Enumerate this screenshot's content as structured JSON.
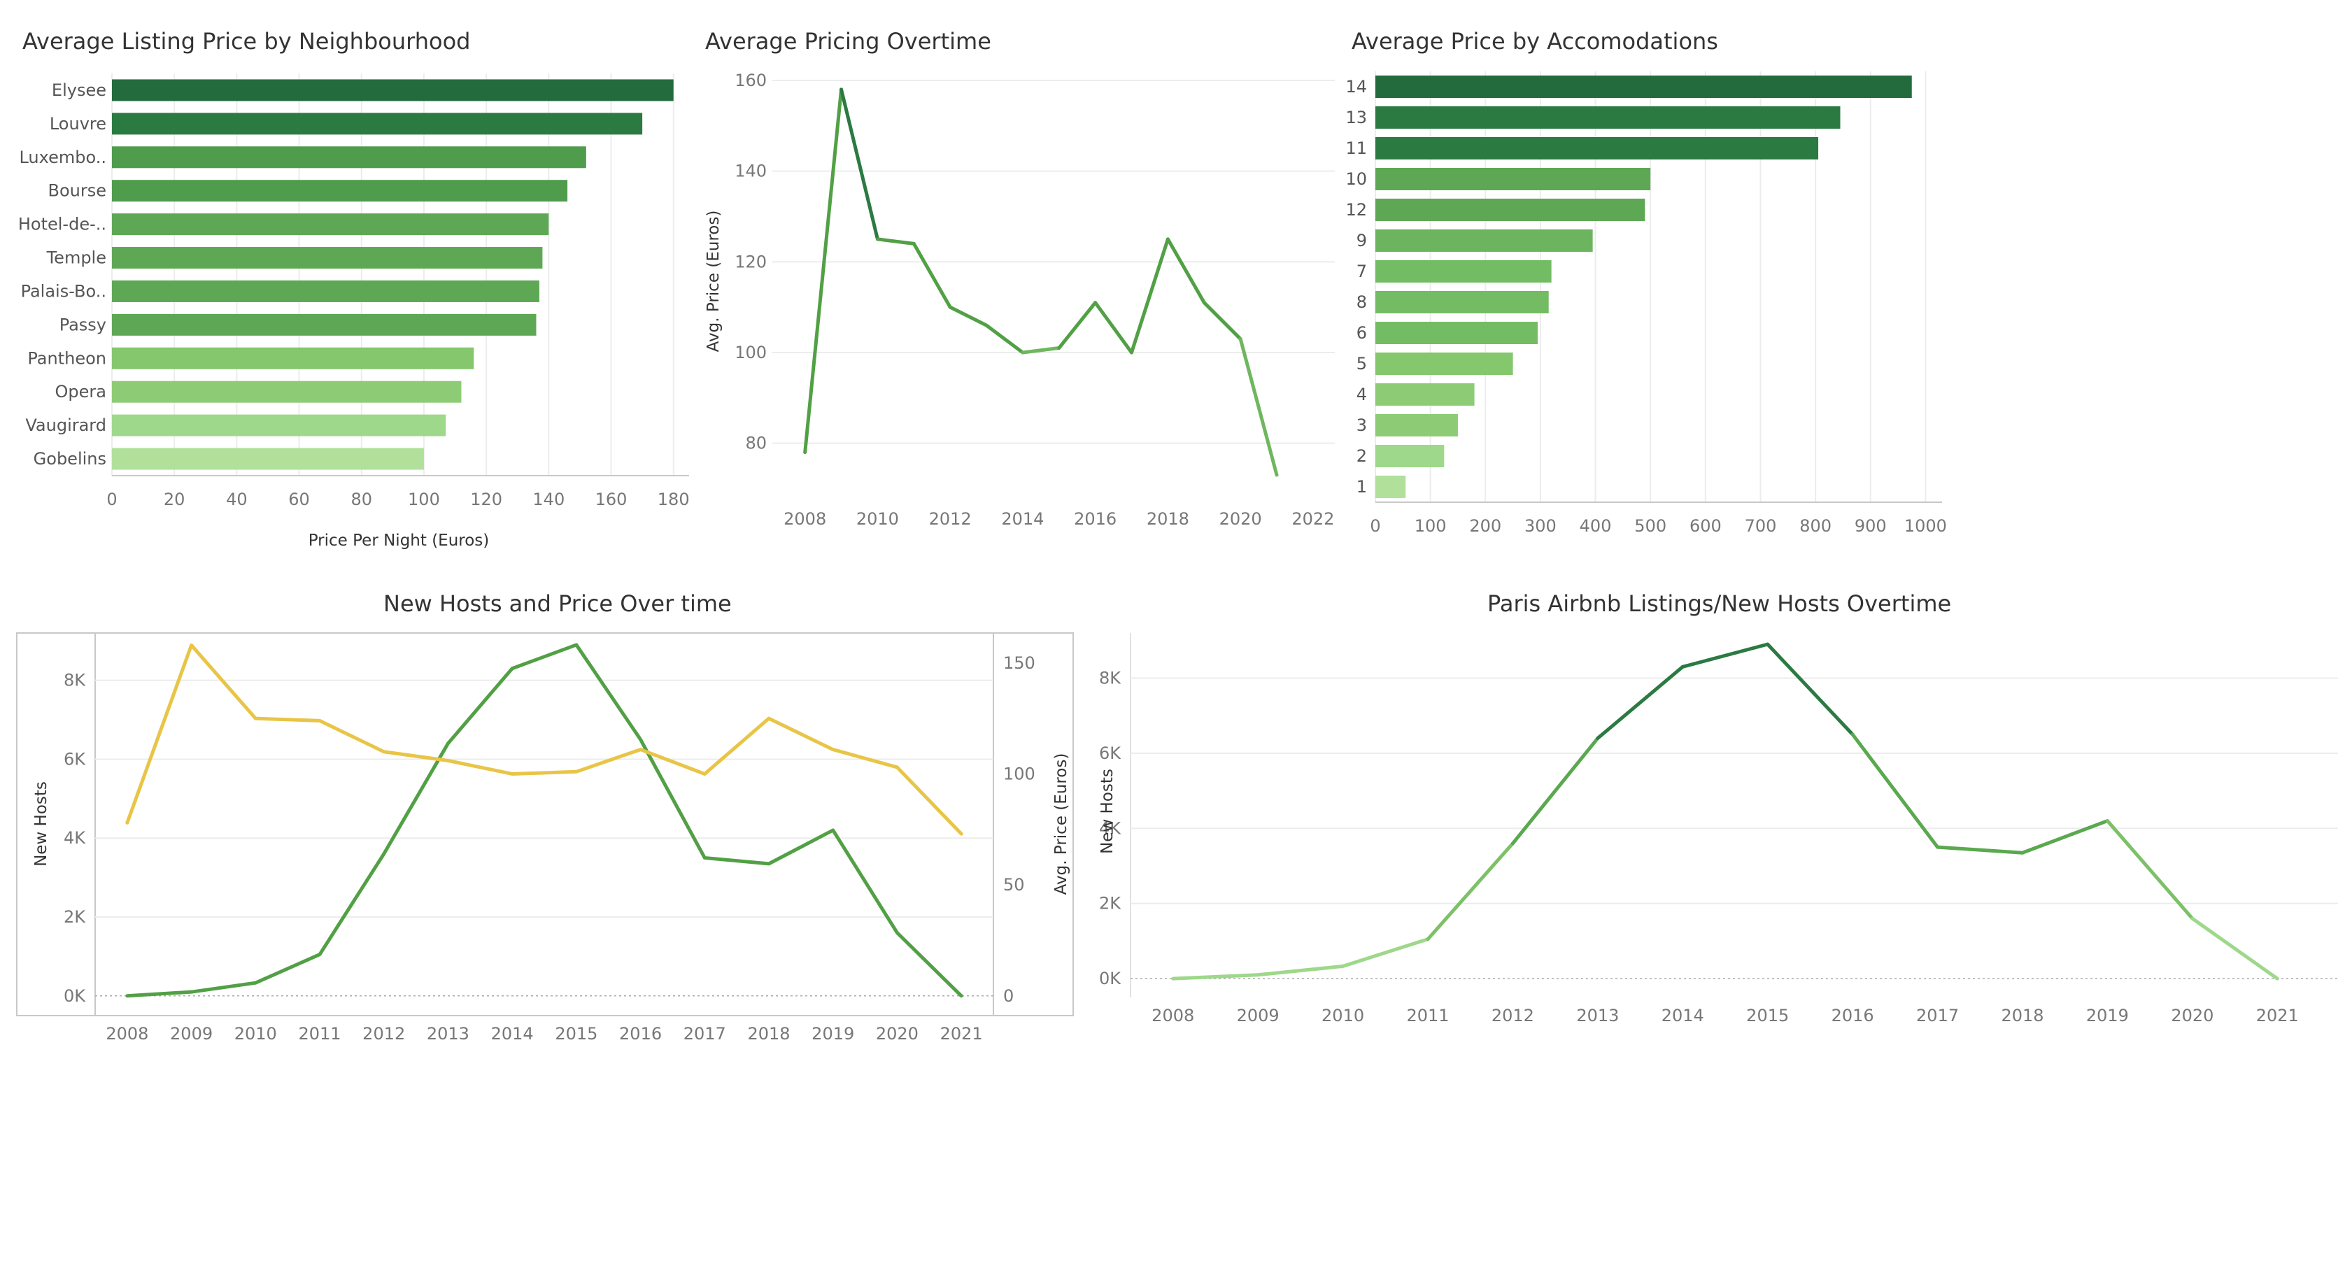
{
  "chart_data": [
    {
      "id": "neigh",
      "type": "bar",
      "orientation": "horizontal",
      "title": "Average Listing Price by Neighbourhood",
      "xlabel": "Price Per Night (Euros)",
      "ylabel": "",
      "categories": [
        "Elysee",
        "Louvre",
        "Luxembo..",
        "Bourse",
        "Hotel-de-..",
        "Temple",
        "Palais-Bo..",
        "Passy",
        "Pantheon",
        "Opera",
        "Vaugirard",
        "Gobelins"
      ],
      "values": [
        180,
        170,
        152,
        146,
        140,
        138,
        137,
        136,
        116,
        112,
        107,
        100
      ],
      "xlim": [
        0,
        185
      ],
      "xticks": [
        "0",
        "20",
        "40",
        "60",
        "80",
        "100",
        "120",
        "140",
        "160",
        "180"
      ],
      "colors": [
        "#236b3d",
        "#2b7a42",
        "#4f9c4c",
        "#4f9c4c",
        "#5ea855",
        "#5ea855",
        "#5ea855",
        "#5ea855",
        "#84c76d",
        "#8dcc75",
        "#9ed88a",
        "#b1e09b"
      ],
      "grid": true
    },
    {
      "id": "pricing",
      "type": "line",
      "title": "Average Pricing Overtime",
      "xlabel": "",
      "ylabel": "Avg. Price (Euros)",
      "x": [
        2008,
        2009,
        2010,
        2011,
        2012,
        2013,
        2014,
        2015,
        2016,
        2017,
        2018,
        2019,
        2020,
        2021
      ],
      "values": [
        78,
        158,
        125,
        124,
        110,
        106,
        100,
        101,
        111,
        100,
        125,
        111,
        103,
        73
      ],
      "xlim": [
        2007.1,
        2022.6
      ],
      "ylim": [
        69,
        162
      ],
      "xticks": [
        "2008",
        "2010",
        "2012",
        "2014",
        "2016",
        "2018",
        "2020",
        "2022"
      ],
      "yticks": [
        "80",
        "100",
        "120",
        "140",
        "160"
      ],
      "grid": true
    },
    {
      "id": "accom",
      "type": "bar",
      "orientation": "horizontal",
      "title": "Average Price by Accomodations",
      "xlabel": "",
      "ylabel": "",
      "categories": [
        "14",
        "13",
        "11",
        "10",
        "12",
        "9",
        "7",
        "8",
        "6",
        "5",
        "4",
        "3",
        "2",
        "1"
      ],
      "values": [
        975,
        845,
        805,
        500,
        490,
        395,
        320,
        315,
        295,
        250,
        180,
        150,
        125,
        55
      ],
      "xlim": [
        0,
        1030
      ],
      "xticks": [
        "0",
        "100",
        "200",
        "300",
        "400",
        "500",
        "600",
        "700",
        "800",
        "900",
        "1000"
      ],
      "colors": [
        "#236b3d",
        "#2b7a42",
        "#2b7a42",
        "#5ea855",
        "#5ea855",
        "#6cb55e",
        "#74bc64",
        "#74bc64",
        "#74bc64",
        "#84c76d",
        "#8dcc75",
        "#8dcc75",
        "#9ed88a",
        "#b1e09b"
      ],
      "grid": true
    },
    {
      "id": "hosts_price",
      "type": "line",
      "title": "New Hosts and Price Over time",
      "xlabel": "",
      "ylabel": "New Hosts",
      "y2label": "Avg. Price (Euros)",
      "x": [
        "2008",
        "2009",
        "2010",
        "2011",
        "2012",
        "2013",
        "2014",
        "2015",
        "2016",
        "2017",
        "2018",
        "2019",
        "2020",
        "2021"
      ],
      "series": [
        {
          "axis": "left",
          "color": "#52a045",
          "values": [
            0,
            100,
            330,
            1050,
            3600,
            6400,
            8300,
            8900,
            6500,
            3500,
            3350,
            4200,
            1600,
            0
          ]
        },
        {
          "axis": "right",
          "color": "#e8c547",
          "values": [
            78,
            158,
            125,
            124,
            110,
            106,
            100,
            101,
            111,
            100,
            125,
            111,
            103,
            73
          ]
        }
      ],
      "ylim": [
        -500,
        9200
      ],
      "y2lim": [
        -8.9,
        163.5
      ],
      "yticks": [
        "0K",
        "2K",
        "4K",
        "6K",
        "8K"
      ],
      "y2ticks": [
        "0",
        "50",
        "100",
        "150"
      ],
      "grid": true
    },
    {
      "id": "listings",
      "type": "line",
      "title": "Paris Airbnb Listings/New Hosts Overtime",
      "xlabel": "",
      "ylabel": "New Hosts",
      "x": [
        "2008",
        "2009",
        "2010",
        "2011",
        "2012",
        "2013",
        "2014",
        "2015",
        "2016",
        "2017",
        "2018",
        "2019",
        "2020",
        "2021"
      ],
      "values": [
        0,
        100,
        330,
        1050,
        3600,
        6400,
        8300,
        8900,
        6500,
        3500,
        3350,
        4200,
        1600,
        0
      ],
      "ylim": [
        -500,
        9200
      ],
      "yticks": [
        "0K",
        "2K",
        "4K",
        "6K",
        "8K"
      ],
      "grid": true
    }
  ]
}
